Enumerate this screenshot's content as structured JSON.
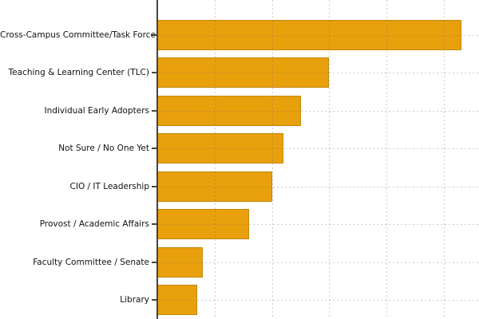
{
  "chart_data": {
    "type": "bar",
    "orientation": "horizontal",
    "title": "",
    "xlabel": "",
    "ylabel": "",
    "categories": [
      "Cross-Campus Committee/Task Force",
      "Teaching & Learning Center (TLC)",
      "Individual Early Adopters",
      "Not Sure / No One Yet",
      "CIO / IT Leadership",
      "Provost / Academic Affairs",
      "Faculty Committee / Senate",
      "Library"
    ],
    "values": [
      53,
      30,
      25,
      22,
      20,
      16,
      8,
      7
    ],
    "xlim": [
      0,
      56
    ],
    "x_gridlines": [
      10,
      20,
      30,
      40,
      50
    ],
    "grid": "dotted gridlines on both axes, drawn over bars",
    "legend": "none",
    "colors": {
      "bar_fill": "#E8A00C",
      "bar_edge": "#C4870A",
      "axis_line": "#444444",
      "gridline_on_white": "#CDCDCD",
      "label_text": "#111111",
      "background": "#FFFFFF"
    }
  }
}
